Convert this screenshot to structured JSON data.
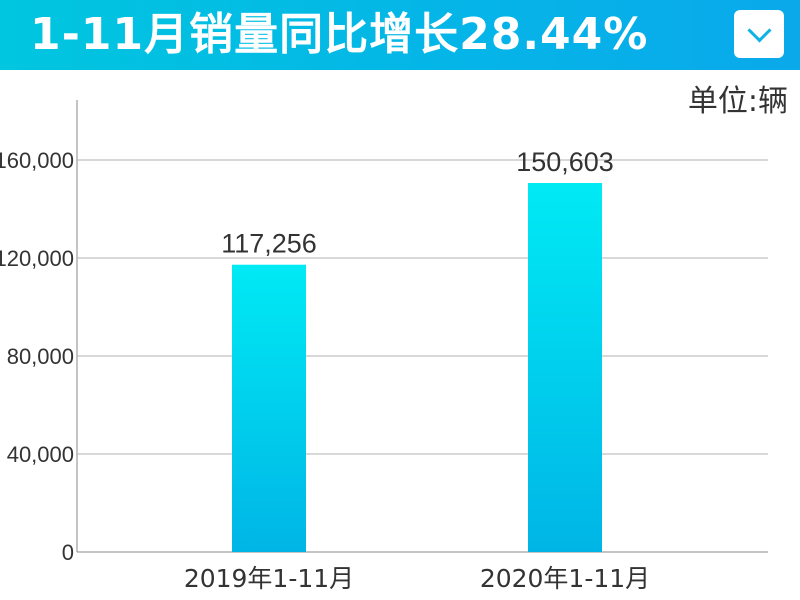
{
  "header": {
    "title": "1-11月销量同比增长28.44%",
    "dropdown_icon": "chevron-down-icon"
  },
  "unit_label": "单位:辆",
  "colors": {
    "header": "#00c0e4",
    "bar_top": "#00eaf4",
    "bar_bottom": "#00b5e6",
    "grid": "#b0b0b0",
    "text": "#333333"
  },
  "chart_data": {
    "type": "bar",
    "categories": [
      "2019年1-11月",
      "2020年1-11月"
    ],
    "values": [
      117256,
      150603
    ],
    "value_labels": [
      "117,256",
      "150,603"
    ],
    "yticks": [
      0,
      40000,
      80000,
      120000,
      160000
    ],
    "ytick_labels": [
      "0",
      "40,000",
      "80,000",
      "120,000",
      "160,000"
    ],
    "ylim": [
      0,
      180000
    ],
    "grid": true,
    "title": "",
    "xlabel": "",
    "ylabel": ""
  }
}
